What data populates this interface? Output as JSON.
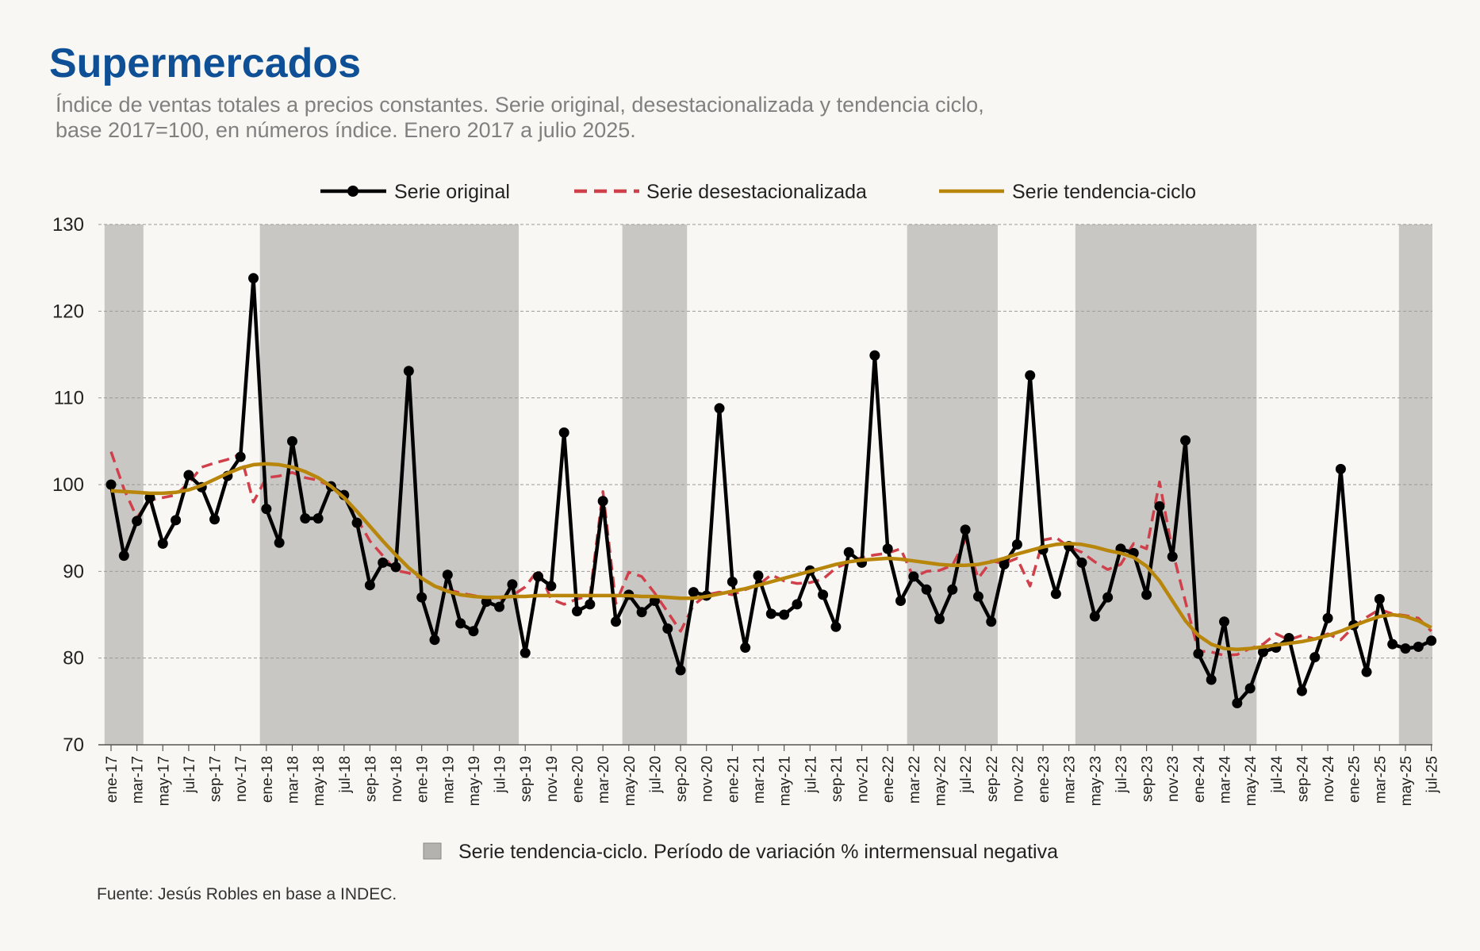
{
  "header": {
    "title": "Supermercados",
    "subtitle_line1": "Índice de ventas totales a precios constantes. Serie original, desestacionalizada y tendencia ciclo,",
    "subtitle_line2": "base 2017=100, en números índice. Enero 2017 a julio 2025."
  },
  "footer": {
    "source": "Fuente: Jesús Robles en base a INDEC."
  },
  "legend": {
    "original": "Serie original",
    "seasonal": "Serie desestacionalizada",
    "trend": "Serie tendencia-ciclo",
    "shade": "Serie tendencia-ciclo. Período de variación % intermensual negativa"
  },
  "colors": {
    "original": "#000000",
    "seasonal": "#d0404a",
    "trend": "#b8860b",
    "shade": "#c8c7c4",
    "grid": "#9a9a9a"
  },
  "chart_data": {
    "type": "line",
    "ylim": [
      70,
      130
    ],
    "yticks": [
      70,
      80,
      90,
      100,
      110,
      120,
      130
    ],
    "legend_position": "top",
    "grid": "horizontal dashed",
    "x_tick_labels": [
      "ene-17",
      "mar-17",
      "may-17",
      "jul-17",
      "sep-17",
      "nov-17",
      "ene-18",
      "mar-18",
      "may-18",
      "jul-18",
      "sep-18",
      "nov-18",
      "ene-19",
      "mar-19",
      "may-19",
      "jul-19",
      "sep-19",
      "nov-19",
      "ene-20",
      "mar-20",
      "may-20",
      "jul-20",
      "sep-20",
      "nov-20",
      "ene-21",
      "mar-21",
      "may-21",
      "jul-21",
      "sep-21",
      "nov-21",
      "ene-22",
      "mar-22",
      "may-22",
      "jul-22",
      "sep-22",
      "nov-22",
      "ene-23",
      "mar-23",
      "may-23",
      "jul-23",
      "sep-23",
      "nov-23",
      "ene-24",
      "mar-24",
      "may-24",
      "jul-24",
      "sep-24",
      "nov-24",
      "ene-25",
      "mar-25",
      "may-25",
      "jul-25"
    ],
    "x_tick_step_months": 2,
    "shaded_periods": [
      [
        "ene-17",
        "mar-17"
      ],
      [
        "ene-18",
        "ago-19"
      ],
      [
        "may-20",
        "sep-20"
      ],
      [
        "mar-22",
        "sep-22"
      ],
      [
        "abr-23",
        "may-24"
      ],
      [
        "may-25",
        "jul-25"
      ]
    ],
    "series": [
      {
        "name": "Serie original",
        "values": [
          100,
          91.8,
          95.8,
          98.5,
          93.2,
          95.9,
          101.1,
          99.7,
          96,
          101,
          103.2,
          123.8,
          97.2,
          93.3,
          105,
          96.1,
          96.1,
          99.8,
          98.8,
          95.6,
          88.4,
          91,
          90.5,
          113.1,
          87,
          82.1,
          89.6,
          84,
          83.1,
          86.5,
          85.9,
          88.5,
          80.6,
          89.4,
          88.3,
          106,
          85.4,
          86.2,
          98.1,
          84.2,
          87.3,
          85.3,
          86.6,
          83.4,
          78.6,
          87.6,
          87.2,
          108.8,
          88.8,
          81.2,
          89.5,
          85.1,
          85,
          86.2,
          90.1,
          87.3,
          83.6,
          92.2,
          91,
          114.9,
          92.6,
          86.6,
          89.4,
          87.9,
          84.5,
          87.9,
          94.8,
          87.1,
          84.2,
          90.8,
          93.1,
          112.6,
          92.5,
          87.4,
          92.9,
          91,
          84.8,
          87,
          92.6,
          92.1,
          87.3,
          97.5,
          91.7,
          105.1,
          80.5,
          77.5,
          84.2,
          74.8,
          76.5,
          80.7,
          81.2,
          82.3,
          76.2,
          80.1,
          84.6,
          101.8,
          83.8,
          78.4,
          86.8,
          81.6,
          81.1,
          81.3,
          82
        ]
      },
      {
        "name": "Serie desestacionalizada",
        "values": [
          103.8,
          99.5,
          96.2,
          98.2,
          98.5,
          98.8,
          100.2,
          102,
          102.5,
          102.9,
          103.5,
          98,
          100.8,
          101,
          101.4,
          100.8,
          100.5,
          99.8,
          98.4,
          96.1,
          93.5,
          91.8,
          90.1,
          89.8,
          89.2,
          88.3,
          87.9,
          87.5,
          87.2,
          87,
          86.8,
          87.2,
          88.2,
          90.2,
          86.8,
          86.2,
          86.8,
          87.2,
          99.2,
          86.3,
          89.9,
          89.4,
          87.5,
          85.3,
          83.1,
          86.1,
          87.3,
          87.6,
          87.3,
          87.9,
          88.4,
          89.6,
          88.9,
          88.6,
          88.7,
          89.1,
          90.4,
          91,
          91.6,
          91.9,
          92.1,
          92.6,
          89.3,
          90,
          90.1,
          90.7,
          93.6,
          89.2,
          91.2,
          90.9,
          91.5,
          88.3,
          93.6,
          93.9,
          92.8,
          92.2,
          91.1,
          90.2,
          90.8,
          93.2,
          92.6,
          100.3,
          92.4,
          86.5,
          80.8,
          80.7,
          80.3,
          80.4,
          81.1,
          81.6,
          82.8,
          82.1,
          82.6,
          82.2,
          82.8,
          82.1,
          83.6,
          84.7,
          85.6,
          85.1,
          84.9,
          84.6,
          83.1
        ]
      },
      {
        "name": "Serie tendencia-ciclo",
        "values": [
          99.3,
          99.2,
          99.1,
          99,
          99,
          99.1,
          99.4,
          99.9,
          100.6,
          101.3,
          101.9,
          102.3,
          102.4,
          102.3,
          102,
          101.5,
          100.8,
          99.8,
          98.5,
          96.9,
          95.2,
          93.5,
          91.9,
          90.4,
          89.2,
          88.3,
          87.7,
          87.3,
          87.1,
          87,
          87,
          87.1,
          87.1,
          87.2,
          87.2,
          87.2,
          87.2,
          87.2,
          87.2,
          87.2,
          87.2,
          87.1,
          87.1,
          87,
          86.9,
          86.9,
          87.1,
          87.4,
          87.7,
          88,
          88.4,
          88.8,
          89.2,
          89.6,
          90,
          90.4,
          90.8,
          91.1,
          91.3,
          91.4,
          91.5,
          91.4,
          91.2,
          91,
          90.8,
          90.7,
          90.7,
          90.8,
          91.1,
          91.5,
          92,
          92.4,
          92.8,
          93.1,
          93.2,
          93.1,
          92.8,
          92.4,
          92.1,
          91.6,
          90.6,
          88.9,
          86.6,
          84.3,
          82.6,
          81.6,
          81.1,
          81,
          81.1,
          81.3,
          81.5,
          81.7,
          81.9,
          82.2,
          82.6,
          83.1,
          83.7,
          84.3,
          84.8,
          85,
          84.8,
          84.3,
          83.5
        ]
      }
    ]
  }
}
